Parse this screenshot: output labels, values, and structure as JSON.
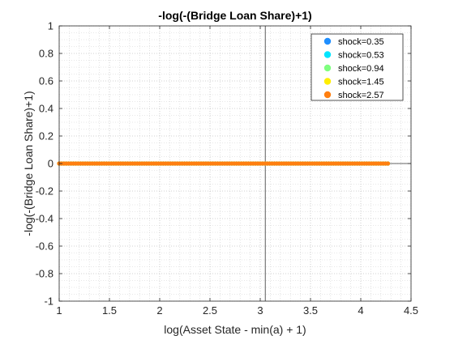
{
  "chart_data": {
    "type": "scatter",
    "title": "-log(-(Bridge Loan Share)+1)",
    "xlabel": "log(Asset State - min(a) + 1)",
    "ylabel": "-log(-(Bridge Loan Share)+1)",
    "xlim": [
      1,
      4.5
    ],
    "ylim": [
      -1,
      1
    ],
    "xticks": [
      1,
      1.5,
      2,
      2.5,
      3,
      3.5,
      4,
      4.5
    ],
    "xtick_labels": [
      "1",
      "1.5",
      "2",
      "2.5",
      "3",
      "3.5",
      "4",
      "4.5"
    ],
    "yticks": [
      -1,
      -0.8,
      -0.6,
      -0.4,
      -0.2,
      0,
      0.2,
      0.4,
      0.6,
      0.8,
      1
    ],
    "ytick_labels": [
      "-1",
      "-0.8",
      "-0.6",
      "-0.4",
      "-0.2",
      "0",
      "0.2",
      "0.4",
      "0.6",
      "0.8",
      "1"
    ],
    "grid": true,
    "minor_grid": true,
    "reference_lines": {
      "vertical_x": 3.05,
      "horizontal_y": 0
    },
    "legend_position": "top-right",
    "x_range_of_points": [
      1.0,
      4.27
    ],
    "series": [
      {
        "name": "shock=0.35",
        "color": "#1f8fff",
        "value": 0
      },
      {
        "name": "shock=0.53",
        "color": "#00e5ff",
        "value": 0
      },
      {
        "name": "shock=0.94",
        "color": "#7fff7f",
        "value": 0
      },
      {
        "name": "shock=1.45",
        "color": "#ffee00",
        "value": 0
      },
      {
        "name": "shock=2.57",
        "color": "#ff7f10",
        "value": 0
      }
    ]
  }
}
